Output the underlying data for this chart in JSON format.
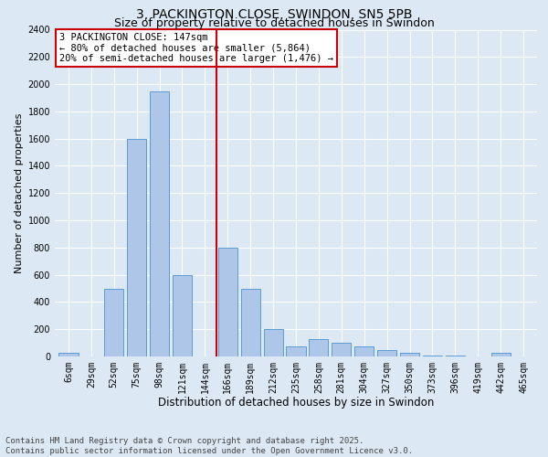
{
  "title1": "3, PACKINGTON CLOSE, SWINDON, SN5 5PB",
  "title2": "Size of property relative to detached houses in Swindon",
  "xlabel": "Distribution of detached houses by size in Swindon",
  "ylabel": "Number of detached properties",
  "categories": [
    "6sqm",
    "29sqm",
    "52sqm",
    "75sqm",
    "98sqm",
    "121sqm",
    "144sqm",
    "166sqm",
    "189sqm",
    "212sqm",
    "235sqm",
    "258sqm",
    "281sqm",
    "304sqm",
    "327sqm",
    "350sqm",
    "373sqm",
    "396sqm",
    "419sqm",
    "442sqm",
    "465sqm"
  ],
  "values": [
    30,
    0,
    500,
    1600,
    1950,
    600,
    0,
    800,
    500,
    200,
    75,
    125,
    100,
    75,
    50,
    30,
    10,
    5,
    0,
    25,
    0
  ],
  "bar_color": "#aec6e8",
  "bar_edge_color": "#5b9bd5",
  "vline_x": 6.5,
  "vline_color": "#cc0000",
  "annotation_text": "3 PACKINGTON CLOSE: 147sqm\n← 80% of detached houses are smaller (5,864)\n20% of semi-detached houses are larger (1,476) →",
  "annotation_box_color": "#cc0000",
  "ylim": [
    0,
    2400
  ],
  "yticks": [
    0,
    200,
    400,
    600,
    800,
    1000,
    1200,
    1400,
    1600,
    1800,
    2000,
    2200,
    2400
  ],
  "bg_color": "#dce9f5",
  "plot_bg_color": "#dce9f5",
  "footer_text": "Contains HM Land Registry data © Crown copyright and database right 2025.\nContains public sector information licensed under the Open Government Licence v3.0.",
  "title1_fontsize": 10,
  "title2_fontsize": 9,
  "xlabel_fontsize": 8.5,
  "ylabel_fontsize": 8,
  "tick_fontsize": 7,
  "annotation_fontsize": 7.5,
  "footer_fontsize": 6.5
}
